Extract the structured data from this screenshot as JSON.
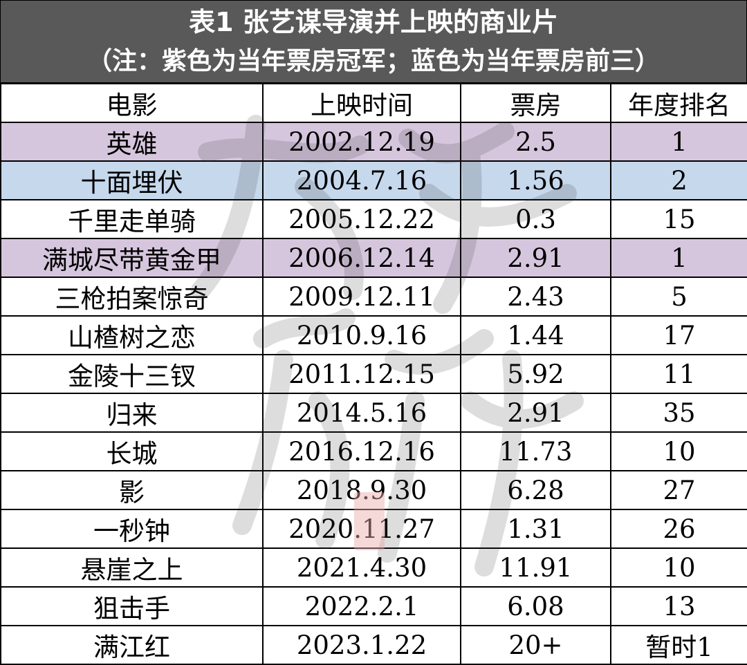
{
  "title": {
    "line1": "表1  张艺谋导演并上映的商业片",
    "line2": "（注：紫色为当年票房冠军；蓝色为当年票房前三）"
  },
  "colors": {
    "header_bg": "#595959",
    "champion_highlight": "#d6c6dd",
    "top3_highlight": "#c6d8ec"
  },
  "table": {
    "headers": [
      "电影",
      "上映时间",
      "票房",
      "年度排名"
    ],
    "rows": [
      {
        "cells": [
          "英雄",
          "2002.12.19",
          "2.5",
          "1"
        ],
        "highlight": "purple"
      },
      {
        "cells": [
          "十面埋伏",
          "2004.7.16",
          "1.56",
          "2"
        ],
        "highlight": "blue"
      },
      {
        "cells": [
          "千里走单骑",
          "2005.12.22",
          "0.3",
          "15"
        ],
        "highlight": "none"
      },
      {
        "cells": [
          "满城尽带黄金甲",
          "2006.12.14",
          "2.91",
          "1"
        ],
        "highlight": "purple"
      },
      {
        "cells": [
          "三枪拍案惊奇",
          "2009.12.11",
          "2.43",
          "5"
        ],
        "highlight": "none"
      },
      {
        "cells": [
          "山楂树之恋",
          "2010.9.16",
          "1.44",
          "17"
        ],
        "highlight": "none"
      },
      {
        "cells": [
          "金陵十三钗",
          "2011.12.15",
          "5.92",
          "11"
        ],
        "highlight": "none"
      },
      {
        "cells": [
          "归来",
          "2014.5.16",
          "2.91",
          "35"
        ],
        "highlight": "none"
      },
      {
        "cells": [
          "长城",
          "2016.12.16",
          "11.73",
          "10"
        ],
        "highlight": "none"
      },
      {
        "cells": [
          "影",
          "2018.9.30",
          "6.28",
          "27"
        ],
        "highlight": "none"
      },
      {
        "cells": [
          "一秒钟",
          "2020.11.27",
          "1.31",
          "26"
        ],
        "highlight": "none"
      },
      {
        "cells": [
          "悬崖之上",
          "2021.4.30",
          "11.91",
          "10"
        ],
        "highlight": "none"
      },
      {
        "cells": [
          "狙击手",
          "2022.2.1",
          "6.08",
          "13"
        ],
        "highlight": "none"
      },
      {
        "cells": [
          "满江红",
          "2023.1.22",
          "20+",
          "暂时1"
        ],
        "highlight": "none"
      }
    ]
  }
}
